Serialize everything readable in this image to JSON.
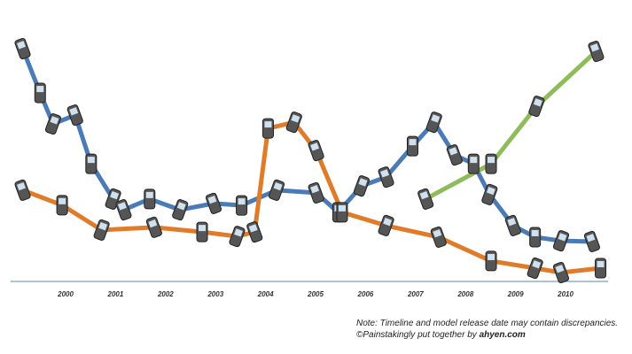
{
  "chart_data": {
    "type": "line",
    "x_series": true,
    "xlim": [
      1998.9,
      2010.85
    ],
    "xticks": [
      2000,
      2001,
      2002,
      2003,
      2004,
      2005,
      2006,
      2007,
      2008,
      2009,
      2010
    ],
    "ylim": [
      0,
      100
    ],
    "series": [
      {
        "color": "#4a7bb7",
        "x": [
          1999.14,
          1999.49,
          1999.75,
          2000.19,
          2000.51,
          2000.95,
          2001.16,
          2001.68,
          2002.29,
          2002.96,
          2003.52,
          2004.22,
          2005.01,
          2005.45,
          2005.92,
          2006.41,
          2006.94,
          2007.37,
          2007.78,
          2008.16,
          2008.48,
          2008.95,
          2009.39,
          2009.91,
          2010.53
        ],
        "values": [
          94.6,
          76.6,
          64.0,
          67.6,
          47.8,
          33.5,
          29.1,
          33.5,
          29.1,
          31.7,
          30.9,
          37.1,
          36.0,
          28.1,
          38.8,
          42.4,
          55.0,
          64.7,
          51.4,
          47.8,
          35.3,
          22.7,
          18.0,
          16.5,
          16.2
        ]
      },
      {
        "color": "#e07b2a",
        "x": [
          1999.14,
          1999.93,
          2000.72,
          2001.77,
          2002.73,
          2003.43,
          2003.78,
          2004.05,
          2004.57,
          2005.01,
          2005.53,
          2006.41,
          2007.46,
          2008.51,
          2009.39,
          2009.91,
          2010.7
        ],
        "values": [
          37.1,
          31.0,
          20.9,
          22.0,
          20.1,
          18.3,
          20.1,
          62.2,
          64.7,
          53.2,
          28.1,
          22.7,
          18.0,
          8.3,
          5.4,
          3.6,
          5.4
        ]
      },
      {
        "color": "#8fbc5a",
        "x": [
          2007.2,
          2008.51,
          2009.42,
          2010.61
        ],
        "values": [
          33.5,
          47.8,
          71.2,
          93.5
        ]
      }
    ],
    "note": "Note: Timeline and model release date may contain discrepancies.",
    "credit": "©Painstakingly put together by",
    "credit_site": "ahyen.com"
  }
}
